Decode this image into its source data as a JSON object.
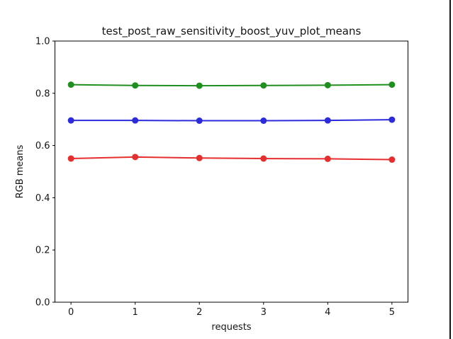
{
  "figure": {
    "background": "#ffffff",
    "frame_color": "#000000",
    "right_edge_color": "#141414"
  },
  "chart_data": {
    "type": "line",
    "title": "test_post_raw_sensitivity_boost_yuv_plot_means",
    "xlabel": "requests",
    "ylabel": "RGB means",
    "x": [
      0,
      1,
      2,
      3,
      4,
      5
    ],
    "xticks": [
      "0",
      "1",
      "2",
      "3",
      "4",
      "5"
    ],
    "yticks": [
      "0.0",
      "0.2",
      "0.4",
      "0.6",
      "0.8",
      "1.0"
    ],
    "xlim": [
      -0.25,
      5.25
    ],
    "ylim": [
      0.0,
      1.0
    ],
    "grid": false,
    "legend": null,
    "marker": "o",
    "series": [
      {
        "name": "green",
        "color": "#1f8f1f",
        "values": [
          0.833,
          0.83,
          0.829,
          0.83,
          0.831,
          0.833
        ]
      },
      {
        "name": "blue",
        "color": "#2b2bdc",
        "values": [
          0.696,
          0.696,
          0.695,
          0.695,
          0.696,
          0.699
        ]
      },
      {
        "name": "red",
        "color": "#e62e2e",
        "values": [
          0.55,
          0.556,
          0.552,
          0.55,
          0.549,
          0.546
        ]
      }
    ]
  }
}
